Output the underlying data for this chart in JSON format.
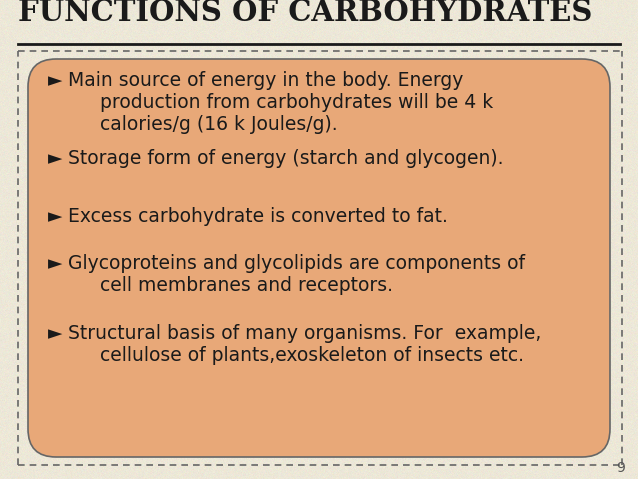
{
  "title": "FUNCTIONS OF CARBOHYDRATES",
  "title_color": "#1a1a1a",
  "background_color": "#ede8d8",
  "box_color": "#e8a878",
  "box_edge_color": "#666666",
  "text_color": "#1a1a1a",
  "bullet_color": "#1a1a1a",
  "bullet_char": "►",
  "bullet_points_line1": [
    "Main source of energy in the body. Energy",
    "Storage form of energy (starch and glycogen).",
    "Excess carbohydrate is converted to fat.",
    "Glycoproteins and glycolipids are components of",
    "Structural basis of many organisms. For  example,"
  ],
  "bullet_points_line2": [
    "production from carbohydrates will be 4 k",
    "",
    "",
    "cell membranes and receptors.",
    "cellulose of plants,exoskeleton of insects etc."
  ],
  "bullet_points_line3": [
    "calories/g (16 k Joules/g).",
    "",
    "",
    "",
    ""
  ],
  "page_number": "9",
  "underline_color": "#1a1a1a",
  "dashed_border_color": "#666666"
}
